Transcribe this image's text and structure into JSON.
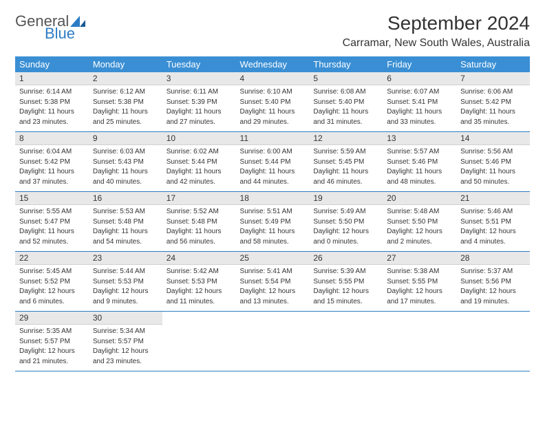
{
  "logo": {
    "general": "General",
    "blue": "Blue"
  },
  "title": "September 2024",
  "location": "Carramar, New South Wales, Australia",
  "colors": {
    "header_bg": "#3a8fd4",
    "header_text": "#ffffff",
    "day_number_bg": "#e8e8e8",
    "body_text": "#333333",
    "logo_general": "#555555",
    "logo_blue": "#2b7cc4",
    "border": "#2b7cc4"
  },
  "daysOfWeek": [
    "Sunday",
    "Monday",
    "Tuesday",
    "Wednesday",
    "Thursday",
    "Friday",
    "Saturday"
  ],
  "weeks": [
    [
      {
        "num": "1",
        "sunrise": "Sunrise: 6:14 AM",
        "sunset": "Sunset: 5:38 PM",
        "daylight1": "Daylight: 11 hours",
        "daylight2": "and 23 minutes."
      },
      {
        "num": "2",
        "sunrise": "Sunrise: 6:12 AM",
        "sunset": "Sunset: 5:38 PM",
        "daylight1": "Daylight: 11 hours",
        "daylight2": "and 25 minutes."
      },
      {
        "num": "3",
        "sunrise": "Sunrise: 6:11 AM",
        "sunset": "Sunset: 5:39 PM",
        "daylight1": "Daylight: 11 hours",
        "daylight2": "and 27 minutes."
      },
      {
        "num": "4",
        "sunrise": "Sunrise: 6:10 AM",
        "sunset": "Sunset: 5:40 PM",
        "daylight1": "Daylight: 11 hours",
        "daylight2": "and 29 minutes."
      },
      {
        "num": "5",
        "sunrise": "Sunrise: 6:08 AM",
        "sunset": "Sunset: 5:40 PM",
        "daylight1": "Daylight: 11 hours",
        "daylight2": "and 31 minutes."
      },
      {
        "num": "6",
        "sunrise": "Sunrise: 6:07 AM",
        "sunset": "Sunset: 5:41 PM",
        "daylight1": "Daylight: 11 hours",
        "daylight2": "and 33 minutes."
      },
      {
        "num": "7",
        "sunrise": "Sunrise: 6:06 AM",
        "sunset": "Sunset: 5:42 PM",
        "daylight1": "Daylight: 11 hours",
        "daylight2": "and 35 minutes."
      }
    ],
    [
      {
        "num": "8",
        "sunrise": "Sunrise: 6:04 AM",
        "sunset": "Sunset: 5:42 PM",
        "daylight1": "Daylight: 11 hours",
        "daylight2": "and 37 minutes."
      },
      {
        "num": "9",
        "sunrise": "Sunrise: 6:03 AM",
        "sunset": "Sunset: 5:43 PM",
        "daylight1": "Daylight: 11 hours",
        "daylight2": "and 40 minutes."
      },
      {
        "num": "10",
        "sunrise": "Sunrise: 6:02 AM",
        "sunset": "Sunset: 5:44 PM",
        "daylight1": "Daylight: 11 hours",
        "daylight2": "and 42 minutes."
      },
      {
        "num": "11",
        "sunrise": "Sunrise: 6:00 AM",
        "sunset": "Sunset: 5:44 PM",
        "daylight1": "Daylight: 11 hours",
        "daylight2": "and 44 minutes."
      },
      {
        "num": "12",
        "sunrise": "Sunrise: 5:59 AM",
        "sunset": "Sunset: 5:45 PM",
        "daylight1": "Daylight: 11 hours",
        "daylight2": "and 46 minutes."
      },
      {
        "num": "13",
        "sunrise": "Sunrise: 5:57 AM",
        "sunset": "Sunset: 5:46 PM",
        "daylight1": "Daylight: 11 hours",
        "daylight2": "and 48 minutes."
      },
      {
        "num": "14",
        "sunrise": "Sunrise: 5:56 AM",
        "sunset": "Sunset: 5:46 PM",
        "daylight1": "Daylight: 11 hours",
        "daylight2": "and 50 minutes."
      }
    ],
    [
      {
        "num": "15",
        "sunrise": "Sunrise: 5:55 AM",
        "sunset": "Sunset: 5:47 PM",
        "daylight1": "Daylight: 11 hours",
        "daylight2": "and 52 minutes."
      },
      {
        "num": "16",
        "sunrise": "Sunrise: 5:53 AM",
        "sunset": "Sunset: 5:48 PM",
        "daylight1": "Daylight: 11 hours",
        "daylight2": "and 54 minutes."
      },
      {
        "num": "17",
        "sunrise": "Sunrise: 5:52 AM",
        "sunset": "Sunset: 5:48 PM",
        "daylight1": "Daylight: 11 hours",
        "daylight2": "and 56 minutes."
      },
      {
        "num": "18",
        "sunrise": "Sunrise: 5:51 AM",
        "sunset": "Sunset: 5:49 PM",
        "daylight1": "Daylight: 11 hours",
        "daylight2": "and 58 minutes."
      },
      {
        "num": "19",
        "sunrise": "Sunrise: 5:49 AM",
        "sunset": "Sunset: 5:50 PM",
        "daylight1": "Daylight: 12 hours",
        "daylight2": "and 0 minutes."
      },
      {
        "num": "20",
        "sunrise": "Sunrise: 5:48 AM",
        "sunset": "Sunset: 5:50 PM",
        "daylight1": "Daylight: 12 hours",
        "daylight2": "and 2 minutes."
      },
      {
        "num": "21",
        "sunrise": "Sunrise: 5:46 AM",
        "sunset": "Sunset: 5:51 PM",
        "daylight1": "Daylight: 12 hours",
        "daylight2": "and 4 minutes."
      }
    ],
    [
      {
        "num": "22",
        "sunrise": "Sunrise: 5:45 AM",
        "sunset": "Sunset: 5:52 PM",
        "daylight1": "Daylight: 12 hours",
        "daylight2": "and 6 minutes."
      },
      {
        "num": "23",
        "sunrise": "Sunrise: 5:44 AM",
        "sunset": "Sunset: 5:53 PM",
        "daylight1": "Daylight: 12 hours",
        "daylight2": "and 9 minutes."
      },
      {
        "num": "24",
        "sunrise": "Sunrise: 5:42 AM",
        "sunset": "Sunset: 5:53 PM",
        "daylight1": "Daylight: 12 hours",
        "daylight2": "and 11 minutes."
      },
      {
        "num": "25",
        "sunrise": "Sunrise: 5:41 AM",
        "sunset": "Sunset: 5:54 PM",
        "daylight1": "Daylight: 12 hours",
        "daylight2": "and 13 minutes."
      },
      {
        "num": "26",
        "sunrise": "Sunrise: 5:39 AM",
        "sunset": "Sunset: 5:55 PM",
        "daylight1": "Daylight: 12 hours",
        "daylight2": "and 15 minutes."
      },
      {
        "num": "27",
        "sunrise": "Sunrise: 5:38 AM",
        "sunset": "Sunset: 5:55 PM",
        "daylight1": "Daylight: 12 hours",
        "daylight2": "and 17 minutes."
      },
      {
        "num": "28",
        "sunrise": "Sunrise: 5:37 AM",
        "sunset": "Sunset: 5:56 PM",
        "daylight1": "Daylight: 12 hours",
        "daylight2": "and 19 minutes."
      }
    ],
    [
      {
        "num": "29",
        "sunrise": "Sunrise: 5:35 AM",
        "sunset": "Sunset: 5:57 PM",
        "daylight1": "Daylight: 12 hours",
        "daylight2": "and 21 minutes."
      },
      {
        "num": "30",
        "sunrise": "Sunrise: 5:34 AM",
        "sunset": "Sunset: 5:57 PM",
        "daylight1": "Daylight: 12 hours",
        "daylight2": "and 23 minutes."
      },
      null,
      null,
      null,
      null,
      null
    ]
  ]
}
